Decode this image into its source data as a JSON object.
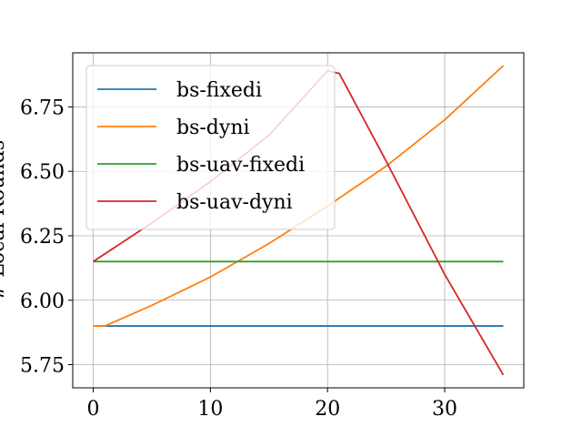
{
  "chart_data": {
    "type": "line",
    "title": "",
    "xlabel": "",
    "ylabel": "# Local Rounds",
    "xlim": [
      -1.75,
      36.75
    ],
    "ylim": [
      5.66,
      6.96
    ],
    "xticks": [
      0,
      10,
      20,
      30
    ],
    "xtick_labels": [
      "0",
      "10",
      "20",
      "30"
    ],
    "yticks": [
      5.75,
      6.0,
      6.25,
      6.5,
      6.75
    ],
    "ytick_labels": [
      "5.75",
      "6.00",
      "6.25",
      "6.50",
      "6.75"
    ],
    "grid": true,
    "legend": {
      "location": "upper-left"
    },
    "series": [
      {
        "name": "bs-fixedi",
        "color": "#1f77b4",
        "x": [
          0,
          35
        ],
        "y": [
          5.9,
          5.9
        ]
      },
      {
        "name": "bs-dyni",
        "color": "#ff7f0e",
        "x": [
          0,
          1,
          5,
          10,
          15,
          20,
          25,
          30,
          35
        ],
        "y": [
          5.9,
          5.9,
          5.98,
          6.09,
          6.22,
          6.365,
          6.52,
          6.7,
          6.91
        ]
      },
      {
        "name": "bs-uav-fixedi",
        "color": "#2ca02c",
        "x": [
          0,
          35
        ],
        "y": [
          6.15,
          6.15
        ]
      },
      {
        "name": "bs-uav-dyni",
        "color": "#d62728",
        "x": [
          0,
          5,
          10,
          15,
          20,
          21,
          25,
          30,
          35
        ],
        "y": [
          6.15,
          6.3,
          6.46,
          6.64,
          6.89,
          6.88,
          6.54,
          6.1,
          5.71
        ]
      }
    ]
  }
}
